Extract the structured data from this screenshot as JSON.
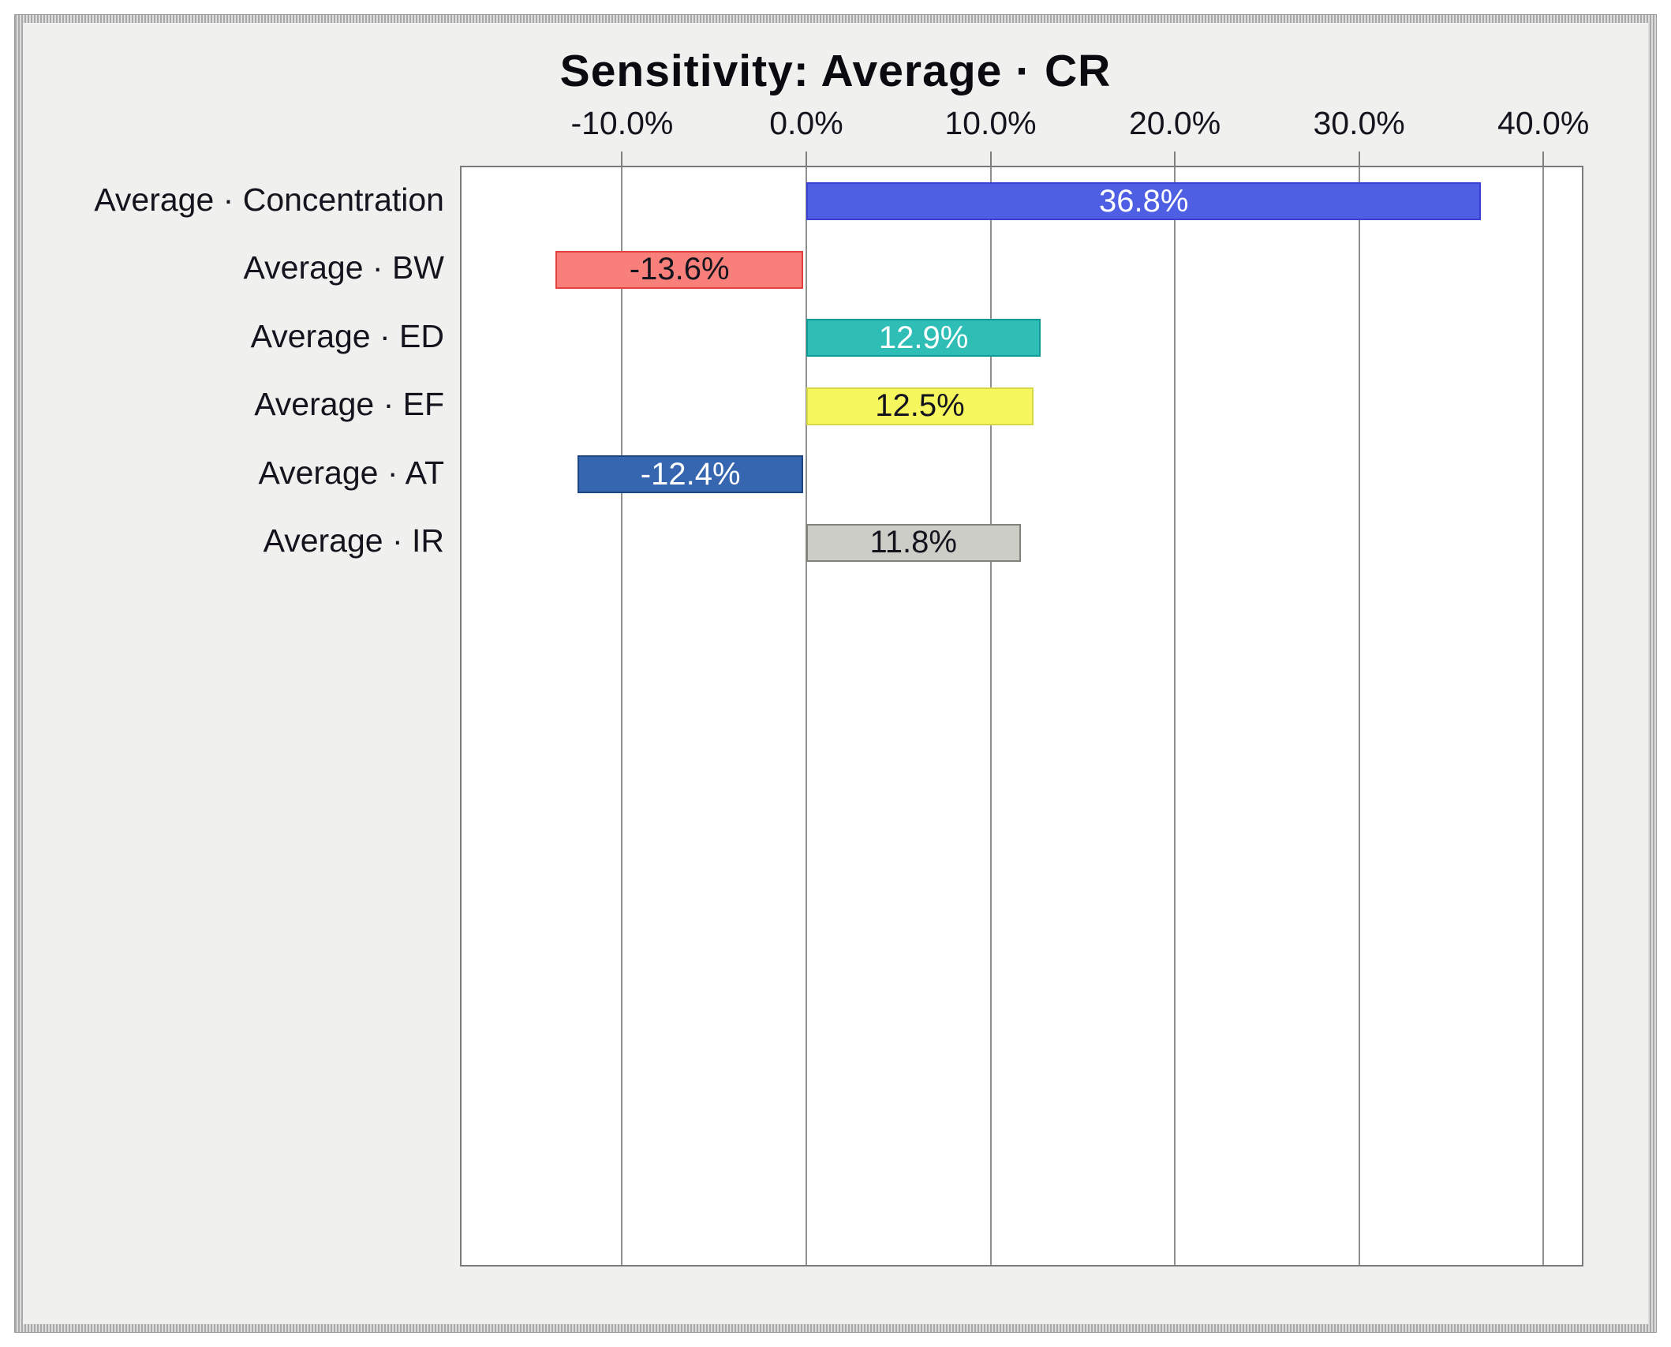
{
  "chart_data": {
    "type": "bar",
    "orientation": "horizontal",
    "title": "Sensitivity: Average · CR",
    "categories": [
      "Average · Concentration",
      "Average · BW",
      "Average · ED",
      "Average · EF",
      "Average · AT",
      "Average · IR"
    ],
    "values": [
      36.8,
      -13.6,
      12.9,
      12.5,
      -12.4,
      11.8
    ],
    "value_labels": [
      "36.8%",
      "-13.6%",
      "12.9%",
      "12.5%",
      "-12.4%",
      "11.8%"
    ],
    "x_tick_values": [
      -10,
      0,
      10,
      20,
      30,
      40
    ],
    "x_tick_labels": [
      "-10.0%",
      "0.0%",
      "10.0%",
      "20.0%",
      "30.0%",
      "40.0%"
    ],
    "xlim": [
      -18.71,
      42.09
    ],
    "axis_position": "top",
    "grid": "vertical",
    "legend": "none",
    "colors": {
      "chart_background": "#f0f0ee",
      "plot_background": "#ffffff",
      "plot_border": "#7a7a7a",
      "gridline": "#8f8f8f",
      "text": "#14141e",
      "title_text": "#0a0a10",
      "bars": [
        {
          "fill": "#4e5fe4",
          "border": "#3a41d2",
          "text": "#ffffff"
        },
        {
          "fill": "#f9807a",
          "border": "#e1423c",
          "text": "#14141e"
        },
        {
          "fill": "#2ebeb6",
          "border": "#0e9a94",
          "text": "#ffffff"
        },
        {
          "fill": "#f6f75e",
          "border": "#d4d84a",
          "text": "#14141e"
        },
        {
          "fill": "#3566af",
          "border": "#1d4584",
          "text": "#ffffff"
        },
        {
          "fill": "#cccdc6",
          "border": "#83837d",
          "text": "#14141e"
        }
      ]
    }
  }
}
